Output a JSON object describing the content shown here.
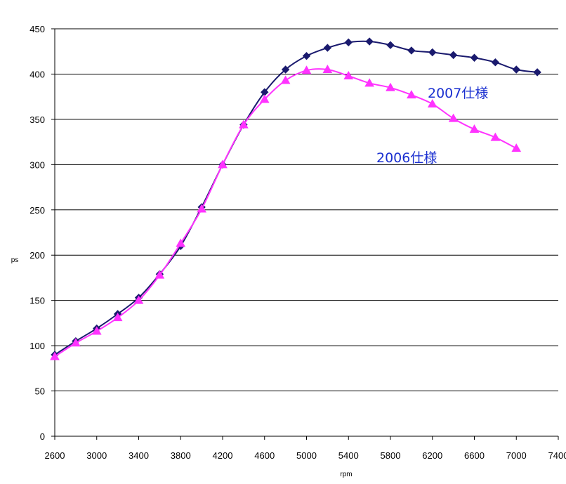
{
  "chart_data": {
    "type": "line",
    "title": "",
    "xlabel": "rpm",
    "ylabel": "ps",
    "xlim": [
      2600,
      7400
    ],
    "ylim": [
      0,
      450
    ],
    "x_ticks": [
      2600,
      3000,
      3400,
      3800,
      4200,
      4600,
      5000,
      5400,
      5800,
      6200,
      6600,
      7000,
      7400
    ],
    "y_ticks": [
      0,
      50,
      100,
      150,
      200,
      250,
      300,
      350,
      400,
      450
    ],
    "grid": "horizontal",
    "series": [
      {
        "name": "2007仕様",
        "color": "#1a1a6e",
        "marker": "diamond",
        "x": [
          2600,
          2800,
          3000,
          3200,
          3400,
          3600,
          3800,
          4000,
          4200,
          4400,
          4600,
          4800,
          5000,
          5200,
          5400,
          5600,
          5800,
          6000,
          6200,
          6400,
          6600,
          6800,
          7000,
          7200
        ],
        "values": [
          90,
          105,
          119,
          135,
          153,
          179,
          210,
          253,
          300,
          344,
          380,
          405,
          420,
          429,
          435,
          436,
          432,
          426,
          424,
          421,
          418,
          413,
          405,
          402
        ]
      },
      {
        "name": "2006仕様",
        "color": "#ff33ff",
        "marker": "triangle",
        "x": [
          2600,
          2800,
          3000,
          3200,
          3400,
          3600,
          3800,
          4000,
          4200,
          4400,
          4600,
          4800,
          5000,
          5200,
          5400,
          5600,
          5800,
          6000,
          6200,
          6400,
          6600,
          6800,
          7000
        ],
        "values": [
          88,
          103,
          116,
          131,
          150,
          178,
          213,
          251,
          300,
          344,
          372,
          393,
          404,
          405,
          398,
          390,
          385,
          377,
          367,
          351,
          339,
          330,
          318
        ]
      }
    ],
    "annotations": [
      {
        "text": "2007仕様",
        "color": "#1a2fd0",
        "near_x": 6000,
        "near_y": 415
      },
      {
        "text": "2006仕様",
        "color": "#1a2fd0",
        "near_x": 5480,
        "near_y": 334
      }
    ]
  }
}
